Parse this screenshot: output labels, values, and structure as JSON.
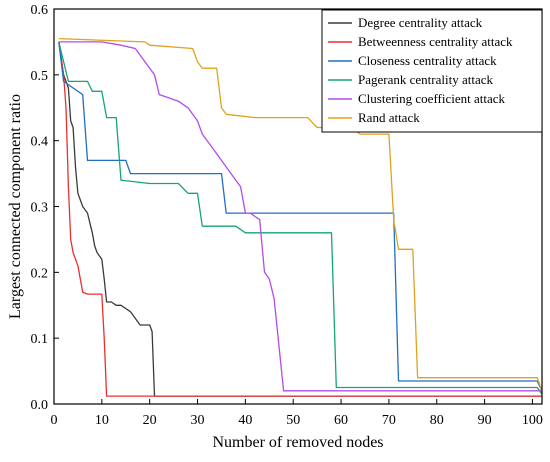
{
  "chart_data": {
    "type": "line",
    "xlabel": "Number of removed nodes",
    "ylabel": "Largest  connected component ratio",
    "xlim": [
      0,
      102
    ],
    "ylim": [
      0,
      0.6
    ],
    "xticks": [
      0,
      10,
      20,
      30,
      40,
      50,
      60,
      70,
      80,
      90,
      100
    ],
    "yticks": [
      0.0,
      0.1,
      0.2,
      0.3,
      0.4,
      0.5,
      0.6
    ],
    "grid": false,
    "legend_position": "top-right",
    "series": [
      {
        "name": "Degree centrality  attack",
        "color": "#3a3a3a",
        "x": [
          1,
          2,
          3,
          3.5,
          4,
          4.5,
          5,
          5.5,
          6,
          7,
          8,
          8.5,
          9,
          10,
          10.5,
          11,
          12,
          13,
          14,
          15,
          16,
          17,
          18,
          19,
          20,
          20.5,
          21,
          102
        ],
        "y": [
          0.55,
          0.5,
          0.48,
          0.43,
          0.42,
          0.36,
          0.32,
          0.31,
          0.3,
          0.29,
          0.26,
          0.24,
          0.23,
          0.22,
          0.19,
          0.155,
          0.155,
          0.15,
          0.15,
          0.145,
          0.14,
          0.13,
          0.12,
          0.12,
          0.12,
          0.11,
          0.012,
          0.012
        ]
      },
      {
        "name": "Betweenness centrality  attack",
        "color": "#e8312f",
        "x": [
          1,
          2,
          2.5,
          3,
          3.5,
          4,
          5,
          6,
          7,
          10,
          10.5,
          11,
          102
        ],
        "y": [
          0.55,
          0.5,
          0.45,
          0.33,
          0.25,
          0.23,
          0.21,
          0.17,
          0.167,
          0.167,
          0.1,
          0.012,
          0.012
        ]
      },
      {
        "name": "Closeness centrality  attack",
        "color": "#1f6fc5",
        "x": [
          1,
          2,
          6,
          7,
          8,
          15,
          16,
          35,
          36,
          71,
          72,
          101,
          102
        ],
        "y": [
          0.55,
          0.49,
          0.47,
          0.37,
          0.37,
          0.37,
          0.35,
          0.35,
          0.29,
          0.29,
          0.035,
          0.035,
          0.02
        ]
      },
      {
        "name": "Pagerank centrality  attack",
        "color": "#12a676",
        "x": [
          1,
          3,
          7,
          8,
          10,
          11,
          13,
          14,
          20,
          26,
          28,
          30,
          31,
          38,
          40,
          58,
          59,
          101,
          102
        ],
        "y": [
          0.55,
          0.49,
          0.49,
          0.475,
          0.475,
          0.435,
          0.435,
          0.34,
          0.335,
          0.335,
          0.32,
          0.32,
          0.27,
          0.27,
          0.26,
          0.26,
          0.025,
          0.025,
          0.015
        ]
      },
      {
        "name": "Clustering coefficient  attack",
        "color": "#b34be8",
        "x": [
          1,
          3,
          5,
          8,
          10,
          14,
          17,
          18,
          19,
          21,
          22,
          24,
          26,
          28,
          30,
          31,
          34,
          37,
          39,
          40,
          41,
          43,
          44,
          45,
          46,
          48,
          102
        ],
        "y": [
          0.55,
          0.55,
          0.55,
          0.55,
          0.55,
          0.545,
          0.54,
          0.53,
          0.52,
          0.5,
          0.47,
          0.465,
          0.46,
          0.45,
          0.43,
          0.41,
          0.38,
          0.35,
          0.33,
          0.29,
          0.29,
          0.28,
          0.2,
          0.19,
          0.16,
          0.02,
          0.02
        ]
      },
      {
        "name": "Rand  attack",
        "color": "#e0a21c",
        "x": [
          1,
          19,
          20,
          29,
          30,
          31,
          34,
          35,
          36,
          42,
          53,
          55,
          62,
          64,
          70,
          71,
          72,
          75,
          76,
          101,
          102
        ],
        "y": [
          0.555,
          0.55,
          0.545,
          0.54,
          0.52,
          0.51,
          0.51,
          0.45,
          0.44,
          0.435,
          0.435,
          0.42,
          0.42,
          0.41,
          0.41,
          0.28,
          0.235,
          0.235,
          0.04,
          0.04,
          0.02
        ]
      }
    ]
  }
}
